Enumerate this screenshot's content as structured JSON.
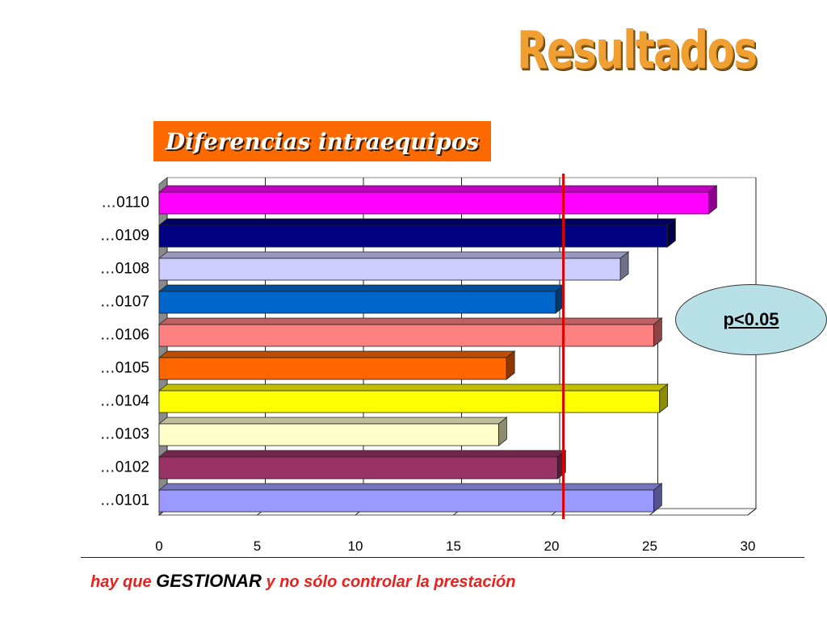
{
  "title": "Resultados",
  "subtitle": "Diferencias intraequipos",
  "annotation": "p<0.05",
  "footer": {
    "part1": "hay que",
    "part2": "GESTIONAR",
    "part3": "y no sólo controlar la prestación"
  },
  "chart_data": {
    "type": "bar",
    "orientation": "horizontal",
    "categories": [
      "…0101",
      "…0102",
      "…0103",
      "…0104",
      "…0105",
      "…0106",
      "…0107",
      "…0108",
      "…0109",
      "…0110"
    ],
    "values": [
      25.2,
      20.3,
      17.3,
      25.5,
      17.7,
      25.2,
      20.2,
      23.5,
      25.9,
      28.0
    ],
    "colors": [
      "#9999ff",
      "#993366",
      "#ffffcc",
      "#ffff00",
      "#ff6600",
      "#ff8080",
      "#0066cc",
      "#ccccff",
      "#000080",
      "#ff00ff"
    ],
    "xlim": [
      0,
      30
    ],
    "xticks": [
      0,
      5,
      10,
      15,
      20,
      25,
      30
    ],
    "reference_line": 20.6,
    "reference_line_color": "#e00000",
    "grid": true
  }
}
